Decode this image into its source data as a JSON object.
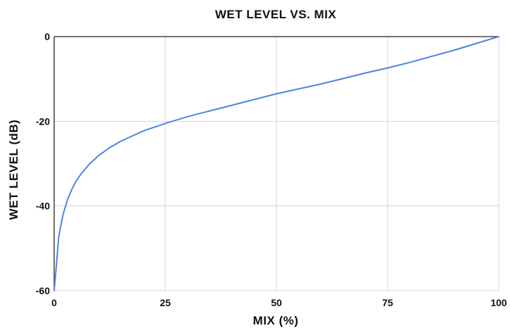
{
  "chart_data": {
    "type": "line",
    "title": "WET LEVEL VS. MIX",
    "xlabel": "MIX (%)",
    "ylabel": "WET LEVEL (dB)",
    "xlim": [
      0,
      100
    ],
    "ylim": [
      -60,
      0
    ],
    "xticks": [
      0,
      25,
      50,
      75,
      100
    ],
    "yticks": [
      -60,
      -40,
      -20,
      0
    ],
    "grid": true,
    "colors": {
      "line": "#4a86e0",
      "grid": "#d4d4d4",
      "axis": "#222222"
    },
    "series": [
      {
        "x": [
          0,
          0.5,
          1,
          1.5,
          2,
          3,
          4,
          5,
          6,
          8,
          10,
          12.5,
          15,
          20,
          25,
          30,
          40,
          50,
          60,
          70,
          75,
          80,
          90,
          100
        ],
        "y": [
          -60,
          -54,
          -47.5,
          -44.6,
          -42.0,
          -38.5,
          -36.0,
          -34.0,
          -32.5,
          -30.0,
          -28.1,
          -26.2,
          -24.7,
          -22.3,
          -20.5,
          -18.9,
          -16.2,
          -13.5,
          -11.2,
          -8.6,
          -7.4,
          -6.1,
          -3.2,
          0
        ]
      }
    ]
  }
}
